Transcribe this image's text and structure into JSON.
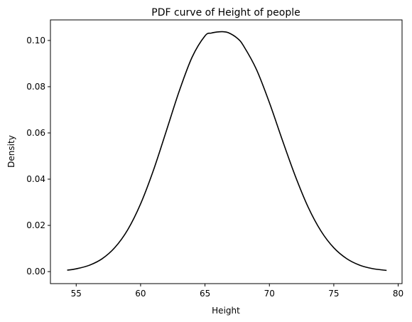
{
  "chart_data": {
    "type": "line",
    "title": "PDF curve of Height of people",
    "xlabel": "Height",
    "ylabel": "Density",
    "xlim": [
      53.0,
      80.3
    ],
    "ylim": [
      -0.0052,
      0.1089
    ],
    "x_ticks": [
      55,
      60,
      65,
      70,
      75,
      80
    ],
    "y_ticks": [
      0.0,
      0.02,
      0.04,
      0.06,
      0.08,
      0.1
    ],
    "x_tick_labels": [
      "55",
      "60",
      "65",
      "70",
      "75",
      "80"
    ],
    "y_tick_labels": [
      "0.00",
      "0.02",
      "0.04",
      "0.06",
      "0.08",
      "0.10"
    ],
    "grid": false,
    "series": [
      {
        "color": "#000000",
        "x": [
          54.3,
          55.0,
          56.0,
          57.0,
          58.0,
          59.0,
          60.0,
          61.0,
          62.0,
          63.0,
          64.0,
          65.0,
          65.5,
          66.0,
          66.36,
          66.8,
          67.5,
          68.0,
          69.0,
          70.0,
          71.0,
          72.0,
          73.0,
          74.0,
          75.0,
          76.0,
          77.0,
          78.0,
          79.1
        ],
        "y": [
          0.0006,
          0.0012,
          0.0027,
          0.0055,
          0.0104,
          0.0181,
          0.0293,
          0.0439,
          0.0609,
          0.0781,
          0.0928,
          0.102,
          0.1032,
          0.1037,
          0.1038,
          0.1034,
          0.101,
          0.0976,
          0.0874,
          0.0731,
          0.057,
          0.0415,
          0.028,
          0.0176,
          0.0103,
          0.0056,
          0.0028,
          0.0013,
          0.0005
        ]
      }
    ]
  }
}
